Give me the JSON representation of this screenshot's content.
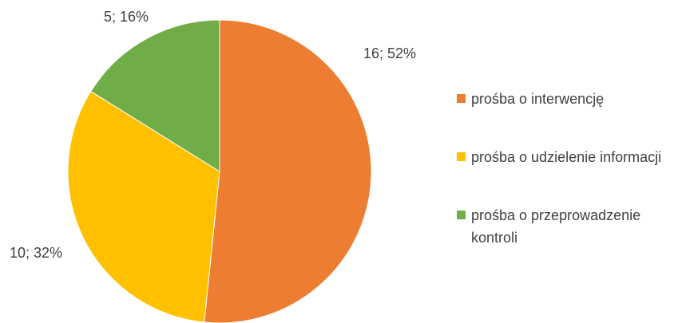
{
  "chart_data": {
    "type": "pie",
    "categories": [
      "prośba o interwencję",
      "prośba o udzielenie informacji",
      "prośba o przeprowadzenie kontroli"
    ],
    "values": [
      16,
      10,
      5
    ],
    "value_labels": [
      "16; 52%",
      "10; 32%",
      "5; 16%"
    ],
    "colors": [
      "#ED7D31",
      "#FFC000",
      "#70AD47"
    ],
    "legend": "right"
  }
}
